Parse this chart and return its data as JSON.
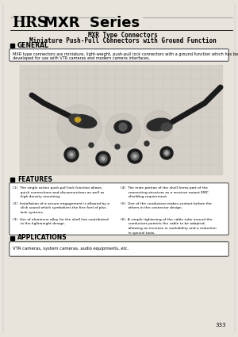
{
  "page_color": "#e8e4dc",
  "title_hrs": "HRS",
  "title_series": "MXR  Series",
  "subtitle1": "MXR Type Connectors",
  "subtitle2": "Miniature Push-Pull Connectors with Ground Function",
  "section_general": "GENERAL",
  "general_text1": "MXR type connectors are miniature, light-weight, push-pull lock connectors with a ground function which has been",
  "general_text2": "developed for use with VTR cameras and modern camera interfaces.",
  "section_features": "FEATURES",
  "features_left": [
    "(1)  The single action push-pull lock function allows\n       quick connections and disconnections as well as\n       high density mounting.",
    "(2)  Installation of a secure engagement is allowed by a\n       click sound which symbolizes the fine feel of plus\n       lock systems.",
    "(3)  Use of aluminum alloy for the shell has contributed\n       to the lightweight design."
  ],
  "features_right": [
    "(4)  The male portion of the shell forms part of the\n       connecting structure as a receiver mount EMC\n       shielding requirement.",
    "(5)  One of the conductors makes contact before the\n       others in the connector design.",
    "(6)  A simple tightening of the cable tube around the\n       conductors permits the cable to be adapted,\n       allowing an increase in workability and a reduction\n       in special tools."
  ],
  "section_applications": "APPLICATIONS",
  "applications_text": "VTR cameras, system cameras, audio equipments, etc.",
  "page_number": "333",
  "img_grid_color": "#c8c4bc",
  "img_bg_color": "#d4d0c8"
}
